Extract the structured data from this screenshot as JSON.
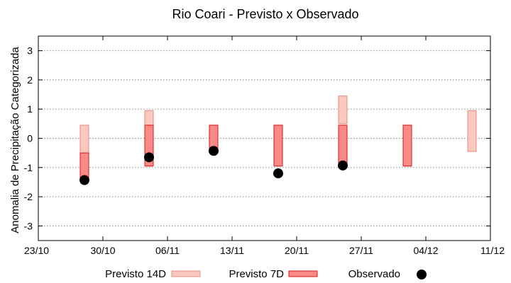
{
  "chart_data": {
    "type": "range-bar",
    "title": "Rio Coari - Previsto x Observado",
    "ylabel": "Anomalia de Precipitação Categorizada",
    "xlabel": "",
    "ylim": [
      -3.5,
      3.5
    ],
    "yticks": [
      -3,
      -2,
      -1,
      0,
      1,
      2,
      3
    ],
    "x_dates": [
      "23/10",
      "30/10",
      "06/11",
      "13/11",
      "20/11",
      "27/11",
      "04/12",
      "11/12"
    ],
    "x_range_days": [
      0,
      49
    ],
    "grid": true,
    "legend_position": "bottom",
    "colors": {
      "previsto_14d_fill": "#f9c9c0",
      "previsto_14d_stroke": "#e58a80",
      "previsto_7d_fill": "#f98a86",
      "previsto_7d_stroke": "#d81818",
      "observado": "#000000"
    },
    "series": [
      {
        "name": "Previsto 14D",
        "kind": "range",
        "points": [
          {
            "day": 5,
            "low": -1.4,
            "high": 0.45
          },
          {
            "day": 12,
            "low": -0.95,
            "high": 0.95
          },
          {
            "day": 19,
            "low": -0.45,
            "high": 0.45
          },
          {
            "day": 26,
            "low": -0.95,
            "high": 0.45
          },
          {
            "day": 33,
            "low": 0.5,
            "high": 1.45
          },
          {
            "day": 40,
            "low": -0.95,
            "high": 0.45
          },
          {
            "day": 47,
            "low": -0.45,
            "high": 0.95
          }
        ]
      },
      {
        "name": "Previsto 7D",
        "kind": "range",
        "points": [
          {
            "day": 5,
            "low": -1.4,
            "high": -0.5
          },
          {
            "day": 12,
            "low": -0.95,
            "high": 0.45
          },
          {
            "day": 19,
            "low": -0.45,
            "high": 0.45
          },
          {
            "day": 26,
            "low": -0.95,
            "high": 0.45
          },
          {
            "day": 33,
            "low": -0.95,
            "high": 0.45
          },
          {
            "day": 40,
            "low": -0.95,
            "high": 0.45
          }
        ]
      },
      {
        "name": "Observado",
        "kind": "point",
        "points": [
          {
            "day": 5,
            "value": -1.43
          },
          {
            "day": 12,
            "value": -0.65
          },
          {
            "day": 19,
            "value": -0.43
          },
          {
            "day": 26,
            "value": -1.2
          },
          {
            "day": 33,
            "value": -0.93
          }
        ]
      }
    ],
    "legend": [
      "Previsto 14D",
      "Previsto 7D",
      "Observado"
    ]
  }
}
